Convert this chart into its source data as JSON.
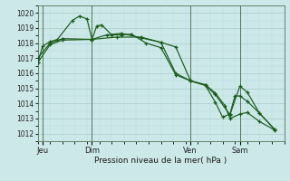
{
  "bg_color": "#cce8e8",
  "plot_bg_color": "#cce8e8",
  "grid_major_color": "#aacccc",
  "grid_minor_color": "#bbdddd",
  "line_color": "#1a5c1a",
  "ylim": [
    1011.5,
    1020.5
  ],
  "yticks": [
    1012,
    1013,
    1014,
    1015,
    1016,
    1017,
    1018,
    1019,
    1020
  ],
  "xlabel": "Pression niveau de la mer( hPa )",
  "day_labels": [
    "Jeu",
    "Dim",
    "Ven",
    "Sam"
  ],
  "day_positions": [
    2,
    22,
    62,
    82
  ],
  "vline_positions": [
    2,
    22,
    62,
    82
  ],
  "xlim": [
    0,
    100
  ],
  "series1_x": [
    0,
    2,
    5,
    8,
    14,
    17,
    20,
    22,
    24,
    26,
    30,
    34,
    38,
    44,
    50,
    56,
    62,
    68,
    72,
    75,
    78,
    80,
    82,
    85,
    90,
    96
  ],
  "series1_y": [
    1016.7,
    1017.8,
    1018.1,
    1018.25,
    1019.5,
    1019.8,
    1019.6,
    1018.25,
    1019.15,
    1019.2,
    1018.55,
    1018.55,
    1018.6,
    1018.0,
    1017.7,
    1015.9,
    1015.5,
    1015.2,
    1014.1,
    1013.1,
    1013.3,
    1014.5,
    1014.5,
    1014.15,
    1013.35,
    1012.3
  ],
  "series2_x": [
    0,
    5,
    10,
    22,
    32,
    42,
    50,
    56,
    62,
    68,
    72,
    78,
    82,
    85,
    90,
    96
  ],
  "series2_y": [
    1016.7,
    1017.9,
    1018.2,
    1018.25,
    1018.4,
    1018.4,
    1018.05,
    1016.0,
    1015.5,
    1015.2,
    1014.6,
    1013.25,
    1015.15,
    1014.75,
    1013.35,
    1012.3
  ],
  "series3_x": [
    0,
    5,
    10,
    22,
    28,
    34,
    42,
    50,
    56,
    62,
    68,
    72,
    76,
    78,
    82,
    85,
    90,
    96
  ],
  "series3_y": [
    1017.0,
    1018.0,
    1018.3,
    1018.25,
    1018.55,
    1018.65,
    1018.35,
    1018.05,
    1017.75,
    1015.5,
    1015.25,
    1014.7,
    1013.85,
    1013.0,
    1013.3,
    1013.4,
    1012.8,
    1012.25
  ]
}
